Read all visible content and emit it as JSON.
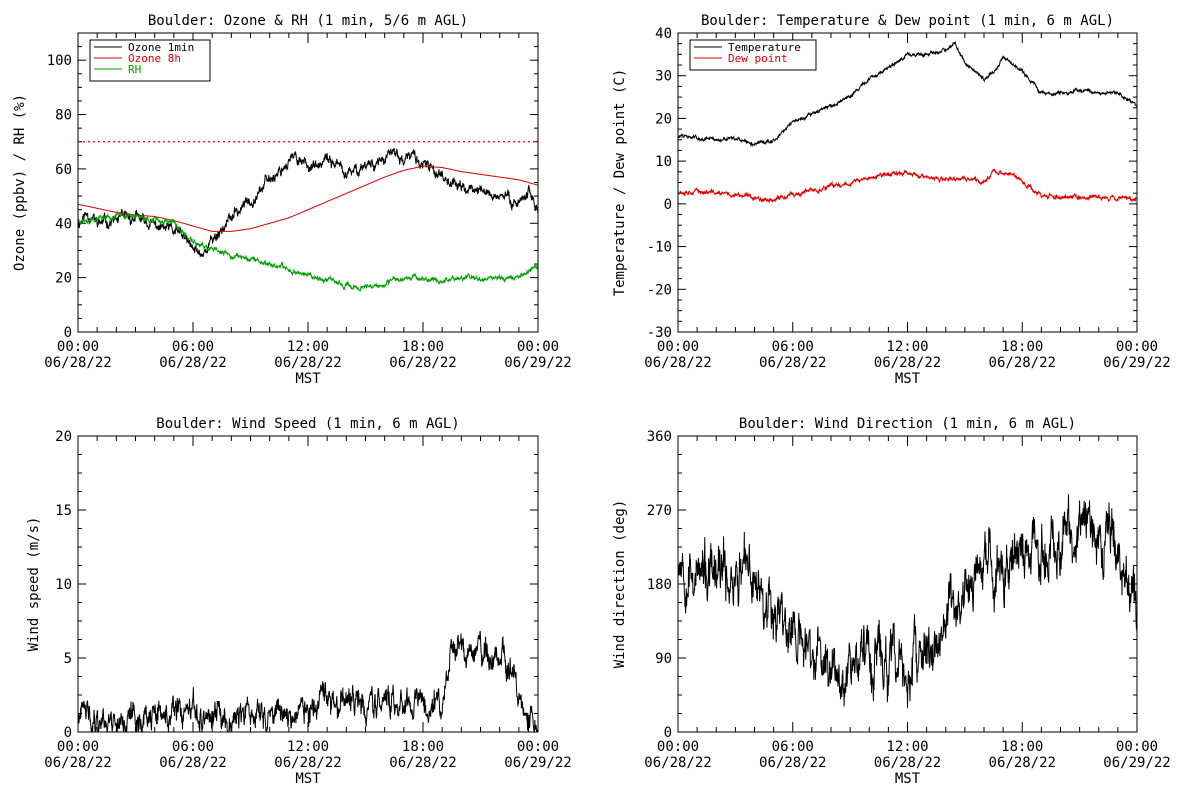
{
  "x_ticks": [
    {
      "time": "00:00",
      "date": "06/28/22"
    },
    {
      "time": "06:00",
      "date": "06/28/22"
    },
    {
      "time": "12:00",
      "date": "06/28/22"
    },
    {
      "time": "18:00",
      "date": "06/28/22"
    },
    {
      "time": "00:00",
      "date": "06/29/22"
    }
  ],
  "chart_data": [
    {
      "type": "line",
      "title": "Boulder: Ozone & RH (1 min, 5/6 m AGL)",
      "xlabel": "MST",
      "ylabel": "Ozone (ppbv) / RH (%)",
      "x_hours_range": [
        0,
        24
      ],
      "ylim": [
        0,
        110
      ],
      "yticks": [
        0,
        20,
        40,
        60,
        80,
        100
      ],
      "reference_line": {
        "y": 70,
        "color": "#dd0000",
        "style": "dotted"
      },
      "legend_position": "top-left",
      "series": [
        {
          "name": "Ozone 1min",
          "color": "#000000",
          "noise": 2.2,
          "seed": 11,
          "x_hours": [
            0,
            0.5,
            1,
            2,
            3,
            4,
            5,
            5.5,
            6,
            6.5,
            7,
            8,
            9,
            10,
            11,
            11.5,
            12,
            12.5,
            13,
            13.5,
            14,
            15,
            16,
            16.5,
            17,
            17.5,
            18,
            19,
            20,
            21,
            22,
            23,
            23.5,
            24
          ],
          "values": [
            40,
            44,
            40,
            41,
            42,
            39,
            37,
            35,
            30,
            29,
            34,
            42,
            49,
            56,
            63,
            64,
            62,
            60,
            63,
            62,
            57,
            62,
            63,
            66,
            63,
            65,
            61,
            58,
            53,
            52,
            50,
            48,
            52,
            45
          ]
        },
        {
          "name": "Ozone 8h",
          "color": "#dd0000",
          "noise": 0,
          "seed": 0,
          "x_hours": [
            0,
            1,
            2,
            3,
            4,
            5,
            6,
            7,
            8,
            9,
            10,
            11,
            12,
            13,
            14,
            15,
            16,
            17,
            18,
            19,
            20,
            21,
            22,
            23,
            24
          ],
          "values": [
            47,
            45.5,
            44,
            43,
            42.5,
            41,
            39,
            37,
            37,
            38,
            40,
            42,
            45,
            48,
            51,
            54,
            57,
            59.5,
            61,
            60.5,
            59,
            58,
            57,
            56,
            54
          ]
        },
        {
          "name": "RH",
          "color": "#00a000",
          "noise": 1.0,
          "seed": 23,
          "x_hours": [
            0,
            1,
            2,
            3,
            4,
            5,
            6,
            7,
            8,
            9,
            10,
            11,
            12,
            13,
            14,
            15,
            16,
            16.5,
            17,
            17.5,
            18,
            19,
            20,
            21,
            22,
            23,
            23.5,
            24
          ],
          "values": [
            41,
            42,
            43,
            43,
            41,
            40,
            33,
            30,
            28,
            27,
            25,
            23,
            21,
            19,
            17,
            16,
            17,
            19,
            20,
            21,
            19,
            19,
            20,
            20,
            20,
            20,
            23,
            24
          ]
        }
      ]
    },
    {
      "type": "line",
      "title": "Boulder: Temperature & Dew point (1 min, 6 m AGL)",
      "xlabel": "MST",
      "ylabel": "Temperature / Dew point (C)",
      "x_hours_range": [
        0,
        24
      ],
      "ylim": [
        -30,
        40
      ],
      "yticks": [
        -30,
        -20,
        -10,
        0,
        10,
        20,
        30,
        40
      ],
      "legend_position": "top-left",
      "series": [
        {
          "name": "Temperature",
          "color": "#000000",
          "noise": 0.45,
          "seed": 31,
          "x_hours": [
            0,
            1,
            2,
            3,
            4,
            5,
            6,
            7,
            8,
            9,
            10,
            11,
            12,
            13,
            14,
            14.5,
            15,
            15.5,
            16,
            16.5,
            17,
            17.5,
            18,
            19,
            20,
            21,
            22,
            23,
            24
          ],
          "values": [
            16,
            15.5,
            15,
            15,
            14,
            15,
            19,
            21,
            23,
            25.5,
            29,
            32,
            35,
            35,
            36,
            38,
            33,
            31,
            29,
            31,
            34,
            33,
            31,
            26,
            26,
            26.5,
            26,
            26,
            23
          ]
        },
        {
          "name": "Dew point",
          "color": "#dd0000",
          "noise": 0.55,
          "seed": 37,
          "x_hours": [
            0,
            1,
            2,
            3,
            4,
            5,
            6,
            7,
            8,
            9,
            10,
            11,
            12,
            13,
            14,
            15,
            16,
            16.5,
            17,
            17.5,
            18,
            19,
            20,
            21,
            22,
            23,
            24
          ],
          "values": [
            3,
            3,
            2.5,
            2,
            1.5,
            1,
            2,
            3,
            4,
            5,
            6,
            7,
            7.5,
            6,
            5.5,
            6,
            5,
            8,
            7,
            7,
            5,
            2,
            1.5,
            1.5,
            1.5,
            1.5,
            1.5
          ]
        }
      ]
    },
    {
      "type": "line",
      "title": "Boulder: Wind Speed (1 min, 6 m AGL)",
      "xlabel": "MST",
      "ylabel": "Wind speed (m/s)",
      "x_hours_range": [
        0,
        24
      ],
      "ylim": [
        0,
        20
      ],
      "yticks": [
        0,
        5,
        10,
        15,
        20
      ],
      "series": [
        {
          "name": "",
          "color": "#000000",
          "noise": 1.0,
          "seed": 41,
          "x_hours": [
            0,
            2,
            4,
            6,
            8,
            10,
            12,
            14,
            16,
            17,
            18,
            19,
            19.5,
            20,
            21,
            22,
            22.5,
            23,
            23.5,
            24
          ],
          "values": [
            1,
            1,
            1,
            1,
            1,
            1.2,
            1.5,
            1.8,
            2,
            2,
            2,
            2.2,
            5,
            5,
            5.5,
            5,
            4,
            2,
            0.5,
            1
          ]
        }
      ]
    },
    {
      "type": "line",
      "title": "Boulder: Wind Direction (1 min, 6 m AGL)",
      "xlabel": "MST",
      "ylabel": "Wind direction (deg)",
      "x_hours_range": [
        0,
        24
      ],
      "ylim": [
        0,
        360
      ],
      "yticks": [
        0,
        90,
        180,
        270,
        360
      ],
      "series": [
        {
          "name": "",
          "color": "#000000",
          "noise": 35,
          "seed": 53,
          "x_hours": [
            0,
            0.5,
            1,
            2,
            3,
            4,
            5,
            6,
            7,
            8,
            9,
            10,
            11,
            12,
            13,
            14,
            15,
            16,
            17,
            18,
            19,
            20,
            21,
            22,
            23,
            23.5,
            24
          ],
          "values": [
            220,
            210,
            190,
            180,
            195,
            185,
            160,
            120,
            90,
            80,
            90,
            100,
            80,
            70,
            90,
            130,
            170,
            190,
            205,
            215,
            225,
            235,
            240,
            240,
            238,
            180,
            150
          ]
        }
      ]
    }
  ]
}
